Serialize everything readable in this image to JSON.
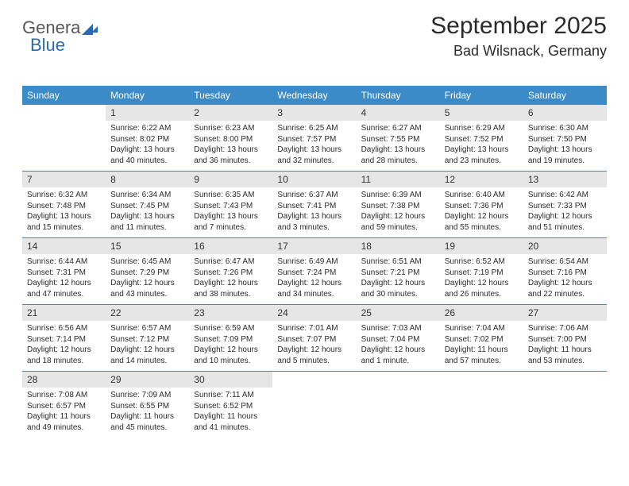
{
  "brand": {
    "part1": "Genera",
    "part2": "Blue"
  },
  "title": {
    "month": "September 2025",
    "location": "Bad Wilsnack, Germany"
  },
  "style": {
    "header_bg": "#3b8bc8",
    "header_fg": "#ffffff",
    "band_bg": "#e6e6e6",
    "row_border": "#3b8bc8",
    "text_color": "#2b2b2b",
    "logo_grey": "#575757",
    "logo_blue": "#2a6bb0",
    "month_fontsize": 30,
    "location_fontsize": 18,
    "header_fontsize": 12,
    "daynum_fontsize": 12,
    "info_fontsize": 10
  },
  "daynames": [
    "Sunday",
    "Monday",
    "Tuesday",
    "Wednesday",
    "Thursday",
    "Friday",
    "Saturday"
  ],
  "weeks": [
    [
      {
        "empty": true
      },
      {
        "num": "1",
        "sunrise": "6:22 AM",
        "sunset": "8:02 PM",
        "daylight": "13 hours and 40 minutes."
      },
      {
        "num": "2",
        "sunrise": "6:23 AM",
        "sunset": "8:00 PM",
        "daylight": "13 hours and 36 minutes."
      },
      {
        "num": "3",
        "sunrise": "6:25 AM",
        "sunset": "7:57 PM",
        "daylight": "13 hours and 32 minutes."
      },
      {
        "num": "4",
        "sunrise": "6:27 AM",
        "sunset": "7:55 PM",
        "daylight": "13 hours and 28 minutes."
      },
      {
        "num": "5",
        "sunrise": "6:29 AM",
        "sunset": "7:52 PM",
        "daylight": "13 hours and 23 minutes."
      },
      {
        "num": "6",
        "sunrise": "6:30 AM",
        "sunset": "7:50 PM",
        "daylight": "13 hours and 19 minutes."
      }
    ],
    [
      {
        "num": "7",
        "sunrise": "6:32 AM",
        "sunset": "7:48 PM",
        "daylight": "13 hours and 15 minutes."
      },
      {
        "num": "8",
        "sunrise": "6:34 AM",
        "sunset": "7:45 PM",
        "daylight": "13 hours and 11 minutes."
      },
      {
        "num": "9",
        "sunrise": "6:35 AM",
        "sunset": "7:43 PM",
        "daylight": "13 hours and 7 minutes."
      },
      {
        "num": "10",
        "sunrise": "6:37 AM",
        "sunset": "7:41 PM",
        "daylight": "13 hours and 3 minutes."
      },
      {
        "num": "11",
        "sunrise": "6:39 AM",
        "sunset": "7:38 PM",
        "daylight": "12 hours and 59 minutes."
      },
      {
        "num": "12",
        "sunrise": "6:40 AM",
        "sunset": "7:36 PM",
        "daylight": "12 hours and 55 minutes."
      },
      {
        "num": "13",
        "sunrise": "6:42 AM",
        "sunset": "7:33 PM",
        "daylight": "12 hours and 51 minutes."
      }
    ],
    [
      {
        "num": "14",
        "sunrise": "6:44 AM",
        "sunset": "7:31 PM",
        "daylight": "12 hours and 47 minutes."
      },
      {
        "num": "15",
        "sunrise": "6:45 AM",
        "sunset": "7:29 PM",
        "daylight": "12 hours and 43 minutes."
      },
      {
        "num": "16",
        "sunrise": "6:47 AM",
        "sunset": "7:26 PM",
        "daylight": "12 hours and 38 minutes."
      },
      {
        "num": "17",
        "sunrise": "6:49 AM",
        "sunset": "7:24 PM",
        "daylight": "12 hours and 34 minutes."
      },
      {
        "num": "18",
        "sunrise": "6:51 AM",
        "sunset": "7:21 PM",
        "daylight": "12 hours and 30 minutes."
      },
      {
        "num": "19",
        "sunrise": "6:52 AM",
        "sunset": "7:19 PM",
        "daylight": "12 hours and 26 minutes."
      },
      {
        "num": "20",
        "sunrise": "6:54 AM",
        "sunset": "7:16 PM",
        "daylight": "12 hours and 22 minutes."
      }
    ],
    [
      {
        "num": "21",
        "sunrise": "6:56 AM",
        "sunset": "7:14 PM",
        "daylight": "12 hours and 18 minutes."
      },
      {
        "num": "22",
        "sunrise": "6:57 AM",
        "sunset": "7:12 PM",
        "daylight": "12 hours and 14 minutes."
      },
      {
        "num": "23",
        "sunrise": "6:59 AM",
        "sunset": "7:09 PM",
        "daylight": "12 hours and 10 minutes."
      },
      {
        "num": "24",
        "sunrise": "7:01 AM",
        "sunset": "7:07 PM",
        "daylight": "12 hours and 5 minutes."
      },
      {
        "num": "25",
        "sunrise": "7:03 AM",
        "sunset": "7:04 PM",
        "daylight": "12 hours and 1 minute."
      },
      {
        "num": "26",
        "sunrise": "7:04 AM",
        "sunset": "7:02 PM",
        "daylight": "11 hours and 57 minutes."
      },
      {
        "num": "27",
        "sunrise": "7:06 AM",
        "sunset": "7:00 PM",
        "daylight": "11 hours and 53 minutes."
      }
    ],
    [
      {
        "num": "28",
        "sunrise": "7:08 AM",
        "sunset": "6:57 PM",
        "daylight": "11 hours and 49 minutes."
      },
      {
        "num": "29",
        "sunrise": "7:09 AM",
        "sunset": "6:55 PM",
        "daylight": "11 hours and 45 minutes."
      },
      {
        "num": "30",
        "sunrise": "7:11 AM",
        "sunset": "6:52 PM",
        "daylight": "11 hours and 41 minutes."
      },
      {
        "empty": true
      },
      {
        "empty": true
      },
      {
        "empty": true
      },
      {
        "empty": true
      }
    ]
  ],
  "labels": {
    "sunrise_prefix": "Sunrise: ",
    "sunset_prefix": "Sunset: ",
    "daylight_prefix": "Daylight: "
  }
}
